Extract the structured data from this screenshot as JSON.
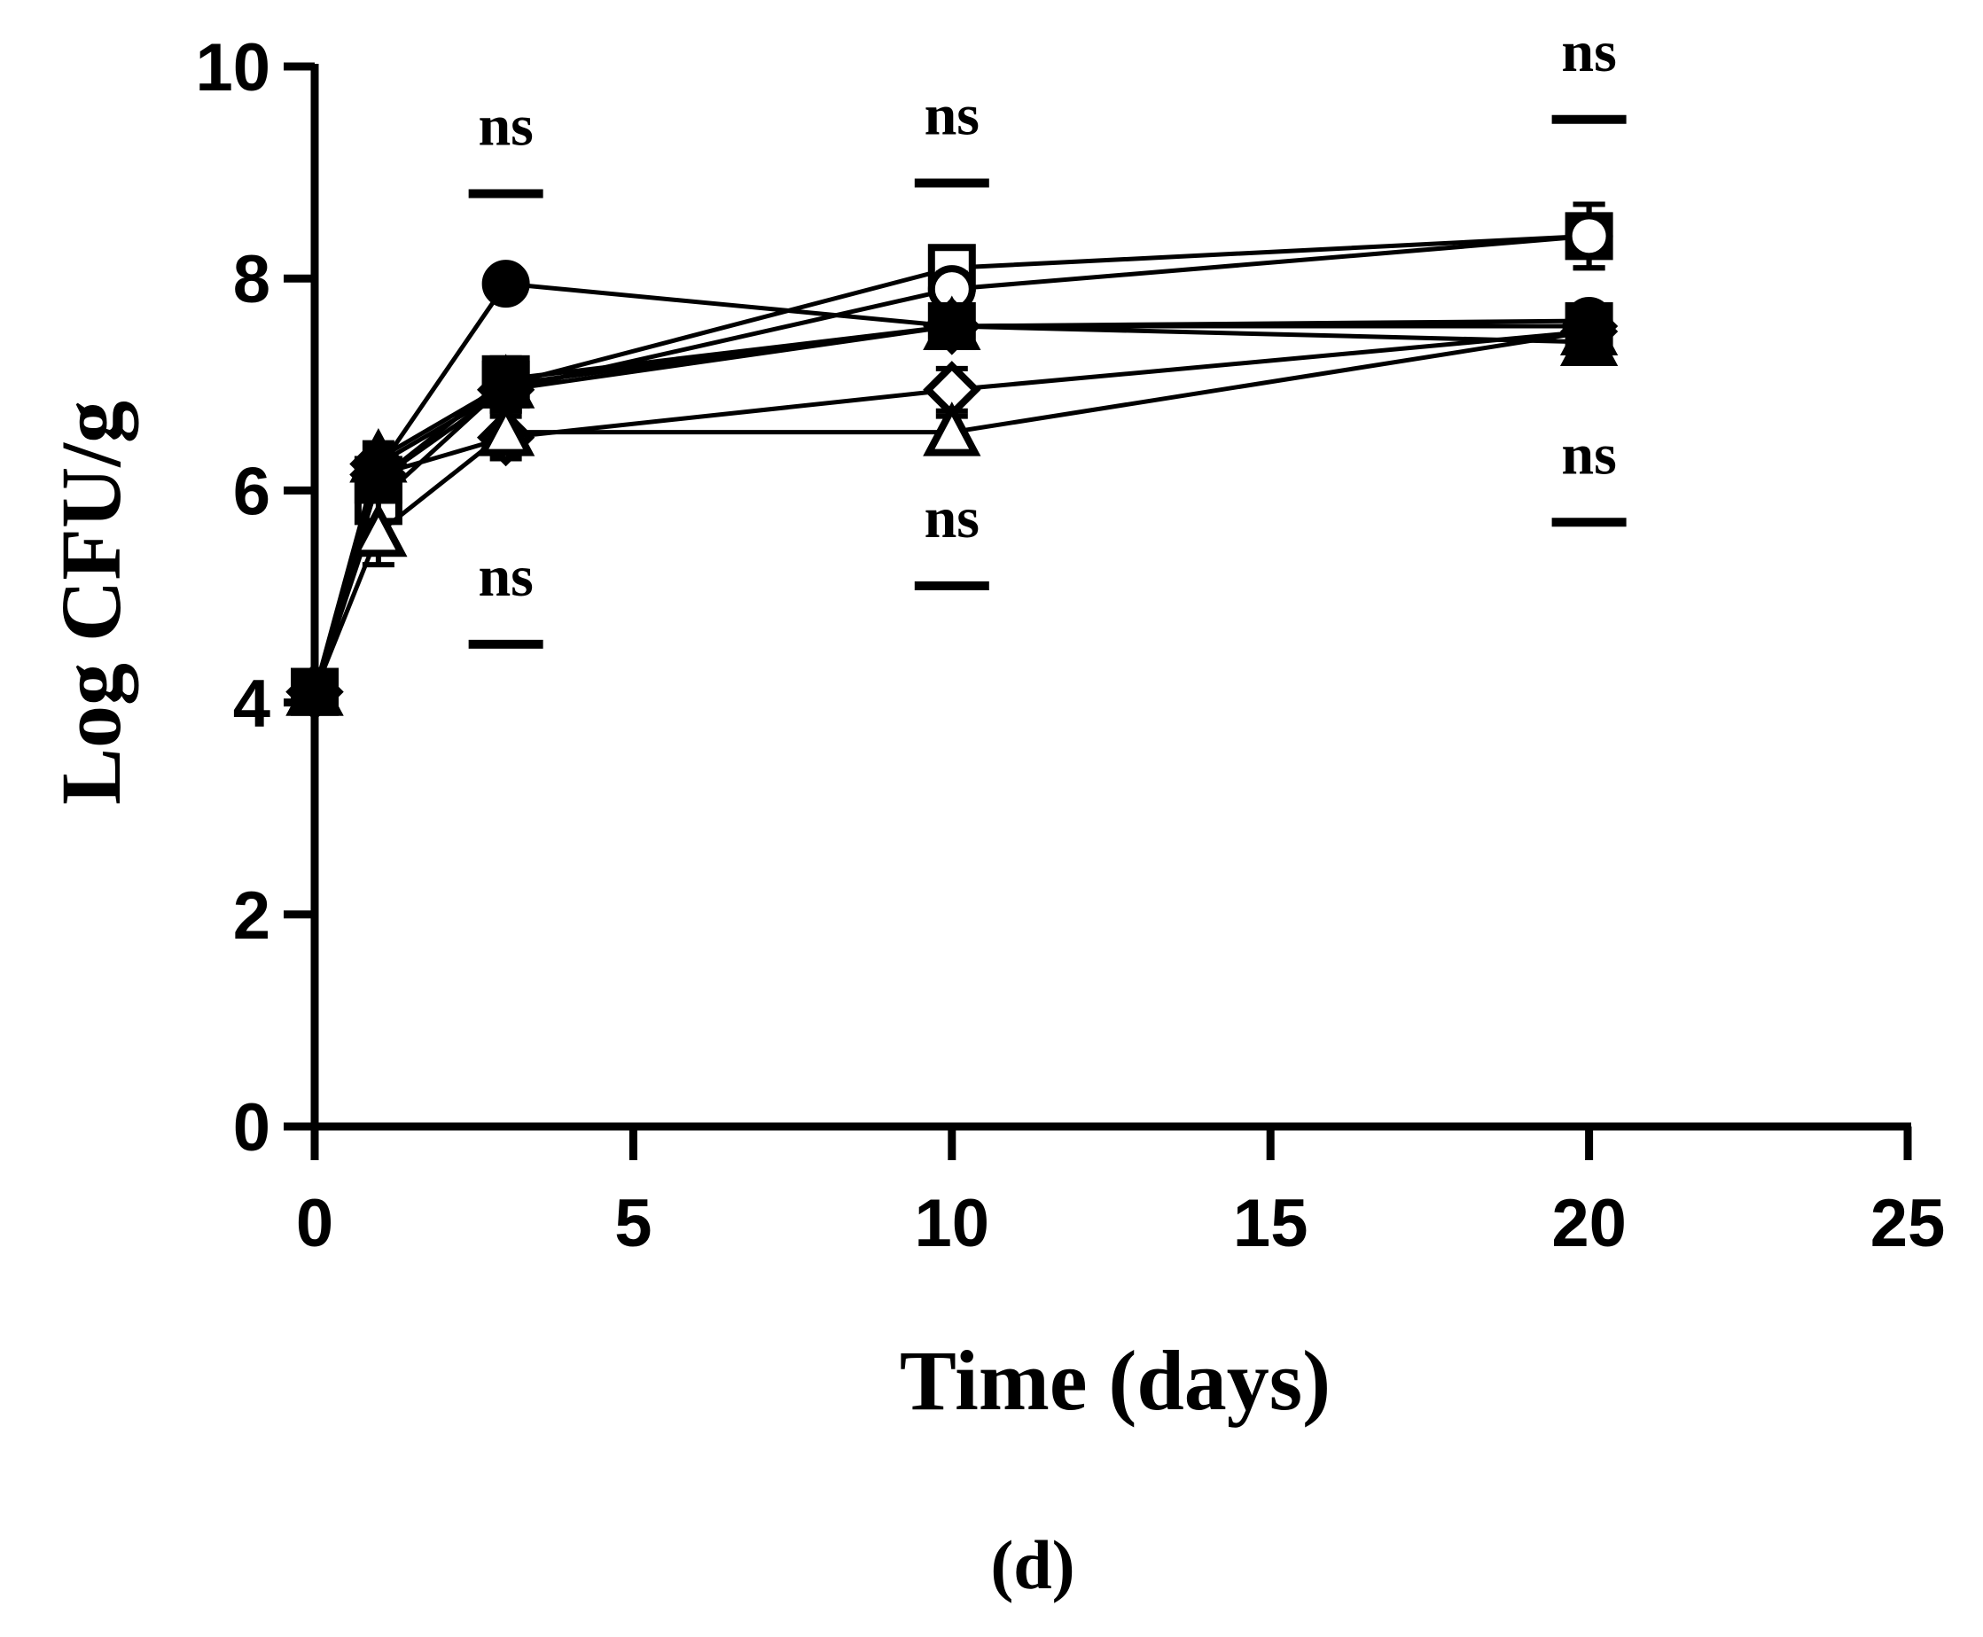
{
  "chart_data": {
    "type": "line",
    "panel_label": "(d)",
    "title": "",
    "xlabel": "Time (days)",
    "ylabel": "Log CFU/g",
    "xlim": [
      0,
      25
    ],
    "ylim": [
      0,
      10
    ],
    "x_ticks": [
      0,
      5,
      10,
      15,
      20,
      25
    ],
    "y_ticks": [
      0,
      2,
      4,
      6,
      8,
      10
    ],
    "x": [
      0,
      1,
      3,
      10,
      20
    ],
    "legend": "none",
    "series": [
      {
        "name": "filled circle",
        "marker": "circle",
        "filled": true,
        "values": [
          4.1,
          6.2,
          7.95,
          7.55,
          7.6
        ],
        "errors": [
          0,
          0.15,
          0.1,
          0.1,
          0.1
        ]
      },
      {
        "name": "open square",
        "marker": "square",
        "filled": false,
        "values": [
          4.1,
          5.9,
          7.0,
          8.1,
          8.4
        ],
        "errors": [
          0,
          0.2,
          0.25,
          0.15,
          0.3
        ]
      },
      {
        "name": "open circle",
        "marker": "circle",
        "filled": false,
        "values": [
          4.1,
          6.1,
          6.95,
          7.9,
          8.4
        ],
        "errors": [
          0,
          0.15,
          0.2,
          0.15,
          0.3
        ]
      },
      {
        "name": "filled diamond",
        "marker": "diamond",
        "filled": true,
        "values": [
          4.1,
          6.25,
          6.95,
          7.55,
          7.55
        ],
        "errors": [
          0,
          0.15,
          0.2,
          0.1,
          0.1
        ]
      },
      {
        "name": "open diamond",
        "marker": "diamond",
        "filled": false,
        "values": [
          4.1,
          6.15,
          6.5,
          6.95,
          7.5
        ],
        "errors": [
          0,
          0.15,
          0.2,
          0.2,
          0.1
        ]
      },
      {
        "name": "filled triangle",
        "marker": "triangle",
        "filled": true,
        "values": [
          4.1,
          6.3,
          7.0,
          7.55,
          7.4
        ],
        "errors": [
          0,
          0.15,
          0.2,
          0.1,
          0.1
        ]
      },
      {
        "name": "open triangle",
        "marker": "triangle",
        "filled": false,
        "values": [
          4.1,
          5.6,
          6.55,
          6.55,
          7.5
        ],
        "errors": [
          0,
          0.3,
          0.2,
          0.15,
          0.1
        ]
      },
      {
        "name": "filled square",
        "marker": "square",
        "filled": true,
        "values": [
          4.1,
          6.1,
          7.05,
          7.55,
          7.55
        ],
        "errors": [
          0,
          0.15,
          0.2,
          0.1,
          0.1
        ]
      }
    ],
    "annotations": [
      {
        "text": "ns",
        "x": 3,
        "y": 8.8
      },
      {
        "text": "ns",
        "x": 3,
        "y": 4.55
      },
      {
        "text": "ns",
        "x": 10,
        "y": 8.9
      },
      {
        "text": "ns",
        "x": 10,
        "y": 5.1
      },
      {
        "text": "ns",
        "x": 20,
        "y": 9.5
      },
      {
        "text": "ns",
        "x": 20,
        "y": 5.7
      }
    ]
  }
}
